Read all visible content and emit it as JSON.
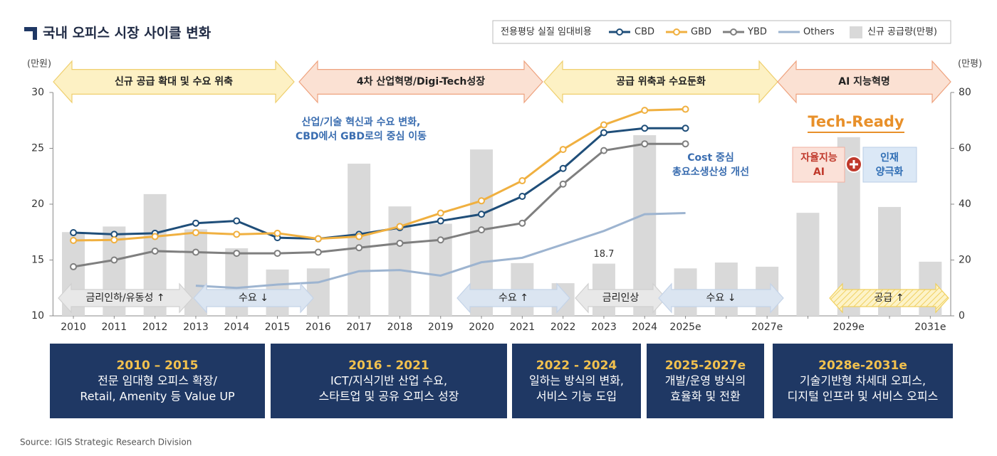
{
  "chart_data": {
    "type": "combo",
    "title": "국내 오피스 시장 사이클 변화",
    "legend_title": "전용평당 실질 임대비용",
    "y_label": "(만원)",
    "y2_label": "(만평)",
    "categories": [
      "2010",
      "2011",
      "2012",
      "2013",
      "2014",
      "2015",
      "2016",
      "2017",
      "2018",
      "2019",
      "2020",
      "2021",
      "2022",
      "2023",
      "2024",
      "2025e",
      null,
      "2027e",
      null,
      "2029e",
      null,
      "2031e"
    ],
    "ylim": [
      10,
      30
    ],
    "yticks": [
      10,
      15,
      20,
      25,
      30
    ],
    "y2lim": [
      0,
      80
    ],
    "y2ticks": [
      0,
      20,
      40,
      60,
      80
    ],
    "series": [
      {
        "name": "CBD",
        "type": "line",
        "color": "#1f4e79",
        "markers": true,
        "values": [
          17.45,
          17.3,
          17.4,
          18.3,
          18.5,
          17.0,
          16.9,
          17.3,
          17.9,
          18.5,
          19.1,
          20.7,
          23.2,
          26.4,
          26.8,
          26.8,
          null,
          null,
          null,
          null,
          null,
          null
        ]
      },
      {
        "name": "GBD",
        "type": "line",
        "color": "#f0b040",
        "markers": true,
        "values": [
          16.75,
          16.8,
          17.1,
          17.45,
          17.3,
          17.4,
          16.9,
          17.1,
          18.0,
          19.2,
          20.3,
          22.1,
          24.9,
          27.1,
          28.4,
          28.5,
          null,
          null,
          null,
          null,
          null,
          null
        ]
      },
      {
        "name": "YBD",
        "type": "line",
        "color": "#7f7f7f",
        "markers": true,
        "values": [
          14.4,
          15.0,
          15.8,
          15.7,
          15.6,
          15.6,
          15.7,
          16.1,
          16.5,
          16.8,
          17.7,
          18.3,
          21.8,
          24.8,
          25.4,
          25.4,
          null,
          null,
          null,
          null,
          null,
          null
        ]
      },
      {
        "name": "Others",
        "type": "line",
        "color": "#9db4d0",
        "markers": false,
        "values": [
          null,
          null,
          null,
          12.7,
          12.5,
          12.8,
          13.0,
          14.0,
          14.1,
          13.6,
          14.8,
          15.2,
          16.4,
          17.6,
          19.1,
          19.2,
          null,
          null,
          null,
          null,
          null,
          null
        ]
      },
      {
        "name": "신규 공급량(만평)",
        "type": "bar",
        "axis": "y2",
        "color": "#d9d9d9",
        "values": [
          30,
          32,
          43.6,
          31,
          24.2,
          16.6,
          17,
          54.5,
          39.2,
          33,
          59.6,
          18.9,
          11.7,
          18.7,
          64.7,
          17,
          19.1,
          17.6,
          36.9,
          64,
          39,
          19.4
        ],
        "labeled": [
          13
        ]
      }
    ],
    "phases": [
      "신규 공급 확대 및 수요 위축",
      "4차 산업혁명/Digi-Tech성장",
      "공급 위축과 수요둔화",
      "AI 지능혁명"
    ],
    "drivers": [
      "금리인하/유동성 ↑",
      "수요 ↓",
      "수요 ↑",
      "금리인상",
      "수요 ↓",
      "공급 ↑"
    ],
    "annotations": [
      [
        "산업/기술 혁신과 수요 변화,",
        "CBD에서 GBD로의 중심 이동"
      ],
      [
        "Cost 중심",
        "총요소생산성 개선"
      ]
    ],
    "tech_ready": {
      "title": "Tech-Ready",
      "left": [
        "자율지능",
        "AI"
      ],
      "right": [
        "인재",
        "양극화"
      ]
    }
  },
  "periods": [
    {
      "title": "2010 – 2015",
      "lines": [
        "전문 임대형 오피스 확장/",
        "Retail, Amenity 등 Value UP"
      ]
    },
    {
      "title": "2016 - 2021",
      "lines": [
        "ICT/지식기반 산업 수요,",
        "스타트업 및 공유 오피스 성장"
      ]
    },
    {
      "title": "2022 - 2024",
      "lines": [
        "일하는 방식의 변화,",
        "서비스 기능 도입"
      ]
    },
    {
      "title": "2025-2027e",
      "lines": [
        "개발/운영 방식의",
        "효율화 및 전환"
      ]
    },
    {
      "title": "2028e-2031e",
      "lines": [
        "기술기반형 차세대 오피스,",
        "디지털 인프라 및 서비스 오피스"
      ]
    }
  ],
  "source": "Source: IGIS Strategic Research Division"
}
